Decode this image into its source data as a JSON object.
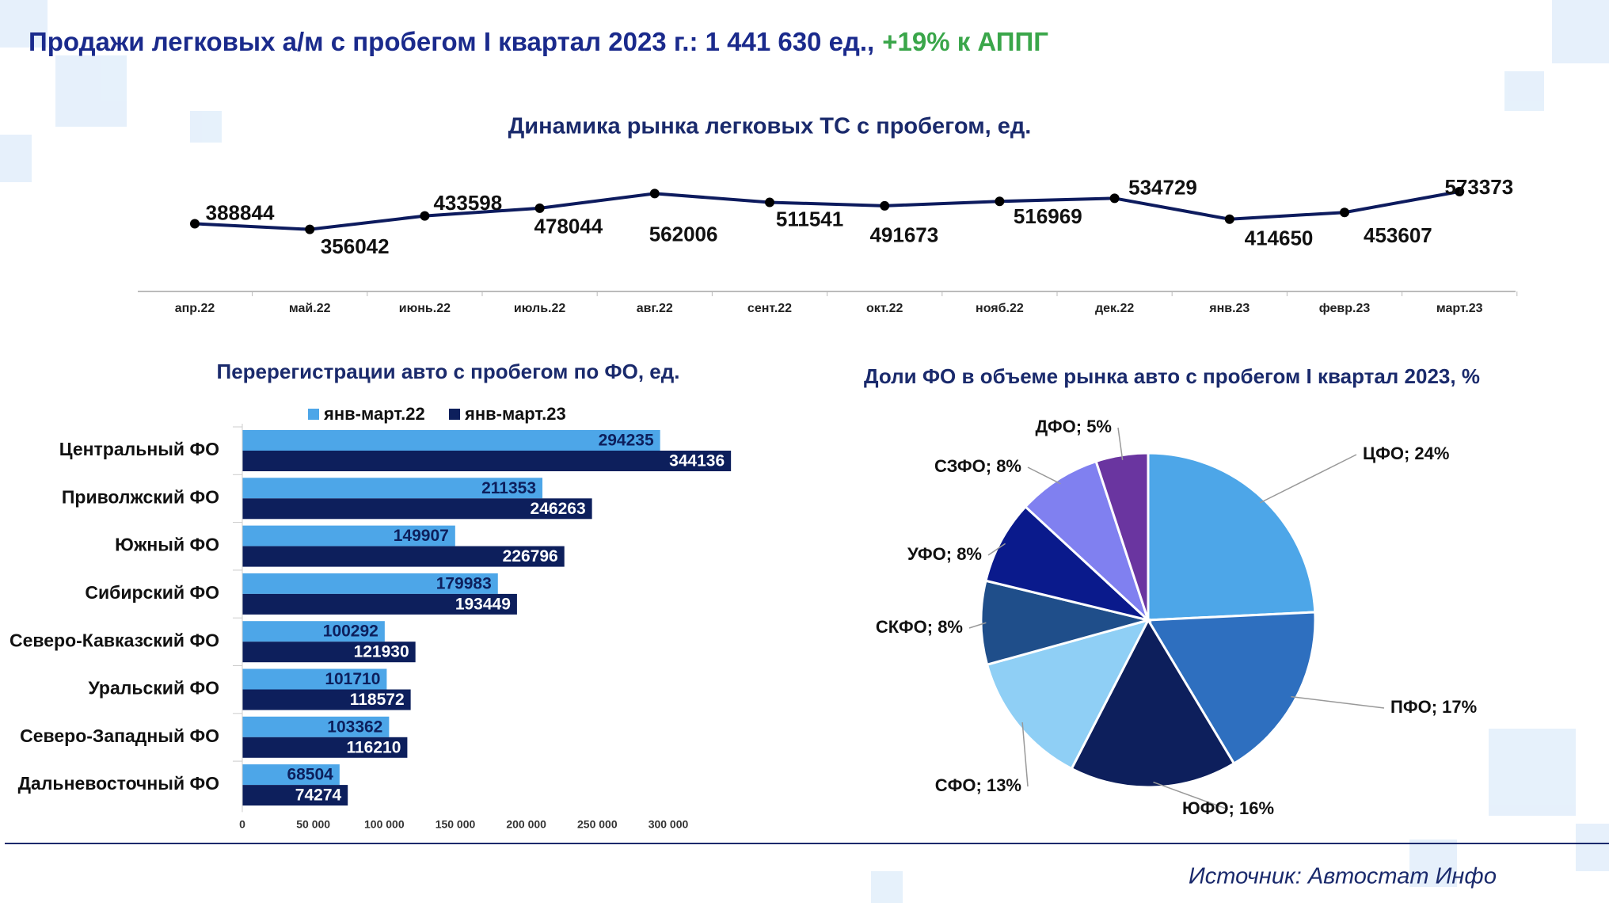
{
  "title": "Продажи легковых а/м с пробегом I квартал 2023 г.: 1 441 630 ед.,",
  "title_highlight": "+19% к АППГ",
  "source": "Источник: Автостат Инфо",
  "chart_data": [
    {
      "type": "line",
      "title": "Динамика рынка легковых ТС с пробегом, ед.",
      "categories": [
        "апр.22",
        "май.22",
        "июнь.22",
        "июль.22",
        "авг.22",
        "сент.22",
        "окт.22",
        "нояб.22",
        "дек.22",
        "янв.23",
        "февр.23",
        "март.23"
      ],
      "values": [
        388844,
        356042,
        433598,
        478044,
        562006,
        511541,
        491673,
        516969,
        534729,
        414650,
        453607,
        573373
      ],
      "color": "#0d1b5e",
      "ylim": [
        0,
        600000
      ]
    },
    {
      "type": "barh",
      "title": "Перерегистрации авто с пробегом по ФО, ед.",
      "categories": [
        "Центральный ФО",
        "Приволжский ФО",
        "Южный ФО",
        "Сибирский ФО",
        "Северо-Кавказский ФО",
        "Уральский ФО",
        "Северо-Западный ФО",
        "Дальневосточный ФО"
      ],
      "series": [
        {
          "name": "янв-март.22",
          "color": "#4da6e8",
          "values": [
            294235,
            211353,
            149907,
            179983,
            100292,
            101710,
            103362,
            68504
          ]
        },
        {
          "name": "янв-март.23",
          "color": "#0d1f5c",
          "values": [
            344136,
            246263,
            226796,
            193449,
            121930,
            118572,
            116210,
            74274
          ]
        }
      ],
      "xlim": [
        0,
        350000
      ],
      "xticks": [
        0,
        {
          "value": 50000,
          "label": "50 000"
        },
        {
          "value": 100000,
          "label": "100 000"
        },
        {
          "value": 150000,
          "label": "150 000"
        },
        {
          "value": 200000,
          "label": "200 000"
        },
        {
          "value": 250000,
          "label": "250 000"
        },
        {
          "value": 300000,
          "label": "300 000"
        }
      ],
      "legend": "top"
    },
    {
      "type": "pie",
      "title": "Доли ФО в объеме рынка авто с пробегом I квартал 2023, %",
      "categories": [
        "ЦФО",
        "ПФО",
        "ЮФО",
        "СФО",
        "СКФО",
        "УФО",
        "СЗФО",
        "ДФО"
      ],
      "values": [
        24,
        17,
        16,
        13,
        8,
        8,
        8,
        5
      ],
      "value_labels": [
        "ЦФО; 24%",
        "ПФО; 17%",
        "ЮФО; 16%",
        "СФО; 13%",
        "СКФО; 8%",
        "УФО; 8%",
        "СЗФО; 8%",
        "ДФО; 5%"
      ],
      "colors": [
        "#4da6e8",
        "#2e6fbf",
        "#0d1f5c",
        "#8fcff5",
        "#1f4e8a",
        "#0a1a8c",
        "#8080f0",
        "#6a35a0"
      ]
    }
  ]
}
